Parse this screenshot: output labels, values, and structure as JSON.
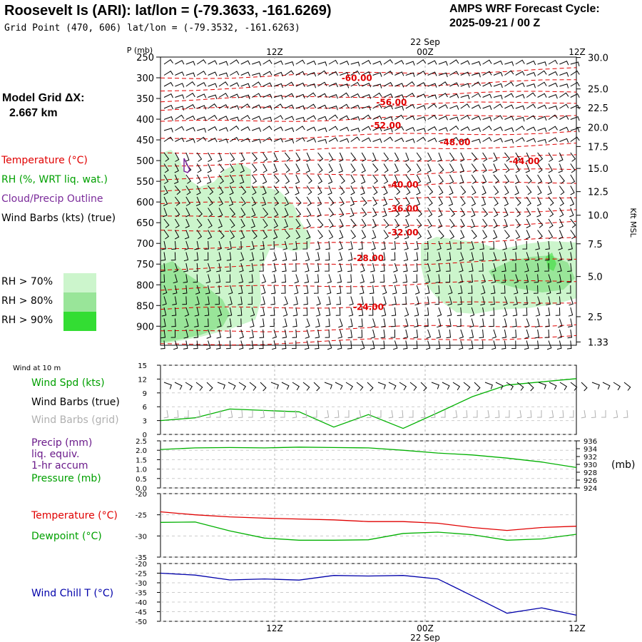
{
  "header": {
    "title": "Roosevelt Is (ARI):  lat/lon = (-79.3633, -161.6269)",
    "subtitle": "Grid Point (470, 606) lat/lon = (-79.3532, -161.6263)",
    "cycle_line1": "AMPS WRF Forecast Cycle:",
    "cycle_line2": "2025-09-21 / 00  Z",
    "grid_line1": "Model Grid ΔX:",
    "grid_line2": "2.667 km"
  },
  "legend": {
    "temperature": "Temperature (°C)",
    "rh": "RH (%, WRT liq. wat.)",
    "cloud": "Cloud/Precip Outline",
    "wind": "Wind Barbs (kts) (true)",
    "rh70": "RH > 70%",
    "rh80": "RH > 80%",
    "rh90": "RH > 90%"
  },
  "colors": {
    "temperature": "#e00000",
    "rh": "#00a000",
    "cloud": "#7a2a9a",
    "rh70": "#ccf5cc",
    "rh80": "#99e599",
    "rh90": "#33dd33",
    "precip": "#6a1a8a",
    "pressure": "#00b000",
    "windchill": "#0000aa",
    "gridbarbs": "#b0b0b0"
  },
  "time_axis": {
    "top_labels": [
      "12Z",
      "00Z",
      "12Z"
    ],
    "top_date": "22 Sep",
    "bottom_labels": [
      "12Z",
      "00Z",
      "12Z"
    ],
    "bottom_date": "22 Sep"
  },
  "chart_data": [
    {
      "type": "line",
      "name": "vertical_profile",
      "ylabel": "P (mb)",
      "right_label": "Kft MSL",
      "pressure_ticks": [
        250,
        300,
        350,
        400,
        450,
        500,
        550,
        600,
        650,
        700,
        750,
        800,
        850,
        900
      ],
      "height_ticks": [
        "30.0",
        "25.0",
        "22.5",
        "20.0",
        "17.5",
        "15.0",
        "12.5",
        "10.0",
        "7.5",
        "5.0",
        "2.5",
        "1.33"
      ],
      "height_tick_pressures": [
        251,
        327,
        372,
        420,
        466,
        519,
        575,
        632,
        701,
        780,
        877,
        938
      ],
      "isotherm_labels": [
        {
          "text": "-60.00",
          "hour": 17,
          "p": 299
        },
        {
          "text": "-56.00",
          "hour": 20,
          "p": 358
        },
        {
          "text": "-52.00",
          "hour": 19.5,
          "p": 414
        },
        {
          "text": "-48.00",
          "hour": 25.5,
          "p": 454
        },
        {
          "text": "-44.00",
          "hour": 31.5,
          "p": 500
        },
        {
          "text": "-40.00",
          "hour": 21,
          "p": 557
        },
        {
          "text": "-36.00",
          "hour": 21,
          "p": 614
        },
        {
          "text": "-32.00",
          "hour": 21,
          "p": 672
        },
        {
          "text": "-28.00",
          "hour": 18,
          "p": 734
        },
        {
          "text": "-24.00",
          "hour": 18,
          "p": 852
        }
      ]
    },
    {
      "type": "line",
      "name": "wind_10m",
      "title": "Wind at 10 m",
      "labels": [
        "Wind Spd (kts)",
        "Wind Barbs (true)",
        "Wind Barbs (grid)"
      ],
      "ylim": [
        0,
        15
      ],
      "yticks": [
        0,
        3,
        6,
        9,
        12,
        15
      ],
      "series": [
        {
          "name": "Wind Spd (kts)",
          "x": [
            0,
            3,
            6,
            9,
            12,
            15,
            18,
            21,
            24,
            27,
            30,
            33,
            36
          ],
          "values": [
            3,
            3.6,
            5.5,
            5.2,
            4.9,
            1.6,
            4.3,
            1.3,
            4.7,
            8.2,
            10.7,
            11.4,
            12.1
          ]
        }
      ]
    },
    {
      "type": "line",
      "name": "precip_pressure",
      "labels": [
        "Precip (mm)",
        "liq. equiv.",
        "1-hr accum",
        "Pressure (mb)"
      ],
      "ylim": [
        0,
        2.5
      ],
      "yticks": [
        "0.0",
        "0.5",
        "1.0",
        "1.5",
        "2.0",
        "2.5"
      ],
      "ylim_right": [
        924,
        936
      ],
      "yticks_right": [
        "924",
        "926",
        "928",
        "930",
        "932",
        "934",
        "936"
      ],
      "right_label": "(mb)",
      "series": [
        {
          "name": "Pressure (mb)",
          "x": [
            0,
            3,
            6,
            9,
            12,
            15,
            18,
            21,
            24,
            27,
            30,
            33,
            36
          ],
          "values": [
            933.8,
            934.2,
            934.3,
            934.2,
            934.4,
            934.3,
            934.2,
            933.6,
            932.9,
            932.4,
            931.6,
            930.6,
            929.2
          ]
        }
      ]
    },
    {
      "type": "line",
      "name": "temperature",
      "labels": [
        "Temperature (°C)",
        "Dewpoint (°C)"
      ],
      "ylim": [
        -35,
        -20
      ],
      "yticks": [
        -20,
        -25,
        -30,
        -35
      ],
      "series": [
        {
          "name": "Temperature (°C)",
          "x": [
            0,
            3,
            6,
            9,
            12,
            15,
            18,
            21,
            24,
            27,
            30,
            33,
            36
          ],
          "values": [
            -24.3,
            -25,
            -25.5,
            -25.8,
            -26,
            -26.2,
            -26.6,
            -26.6,
            -27,
            -28,
            -28.7,
            -28,
            -27.7
          ]
        },
        {
          "name": "Dewpoint (°C)",
          "x": [
            0,
            3,
            6,
            9,
            12,
            15,
            18,
            21,
            24,
            27,
            30,
            33,
            36
          ],
          "values": [
            -26.8,
            -26.7,
            -28.8,
            -30.5,
            -31,
            -31,
            -30.9,
            -29.4,
            -29.1,
            -29.7,
            -31,
            -30.7,
            -29.6
          ]
        }
      ]
    },
    {
      "type": "line",
      "name": "wind_chill",
      "labels": [
        "Wind Chill T (°C)"
      ],
      "ylim": [
        -50,
        -20
      ],
      "yticks": [
        -20,
        -25,
        -30,
        -35,
        -40,
        -45,
        -50
      ],
      "series": [
        {
          "name": "Wind Chill T (°C)",
          "x": [
            0,
            3,
            6,
            9,
            12,
            15,
            18,
            21,
            24,
            27,
            30,
            33,
            36
          ],
          "values": [
            -25,
            -26,
            -28.5,
            -28,
            -28.6,
            -26.2,
            -26.5,
            -26.2,
            -28,
            -36.8,
            -45.8,
            -43,
            -46.8
          ]
        }
      ]
    }
  ]
}
